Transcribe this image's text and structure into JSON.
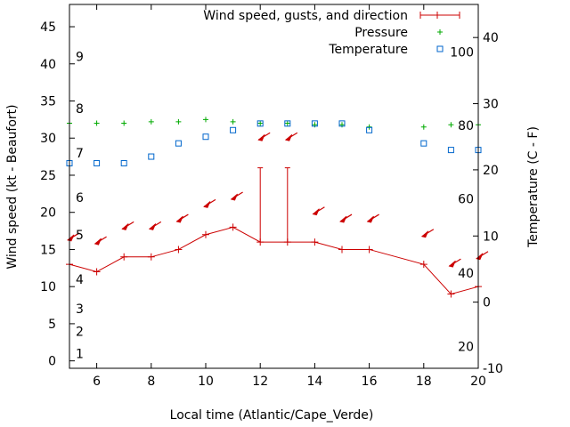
{
  "chart_data": {
    "type": "line",
    "x": [
      5,
      6,
      7,
      8,
      9,
      10,
      11,
      12,
      13,
      14,
      15,
      16,
      18,
      19,
      20
    ],
    "xlabel": "Local time (Atlantic/Cape_Verde)",
    "ylabel": "Wind speed (kt - Beaufort)",
    "y2label": "Temperature (C - F)",
    "xlim": [
      5,
      20
    ],
    "ylim": [
      -1,
      48
    ],
    "y2lim": [
      -10,
      45
    ],
    "xticks": [
      "6",
      "8",
      "10",
      "12",
      "14",
      "16",
      "18",
      "20"
    ],
    "yticks": [
      "0",
      "5",
      "10",
      "15",
      "20",
      "25",
      "30",
      "35",
      "40",
      "45"
    ],
    "y2ticks": [
      "-10",
      "0",
      "10",
      "20",
      "30",
      "40"
    ],
    "beaufort_labels": [
      {
        "label": "1",
        "kt": 1
      },
      {
        "label": "2",
        "kt": 4
      },
      {
        "label": "3",
        "kt": 7
      },
      {
        "label": "4",
        "kt": 11
      },
      {
        "label": "5",
        "kt": 17
      },
      {
        "label": "6",
        "kt": 22
      },
      {
        "label": "7",
        "kt": 28
      },
      {
        "label": "8",
        "kt": 34
      },
      {
        "label": "9",
        "kt": 41
      }
    ],
    "fahrenheit_labels": [
      {
        "label": "20",
        "c": -6.7
      },
      {
        "label": "40",
        "c": 4.4
      },
      {
        "label": "60",
        "c": 15.6
      },
      {
        "label": "80",
        "c": 26.7
      },
      {
        "label": "100",
        "c": 37.8
      }
    ],
    "series": [
      {
        "name": "Wind speed, gusts, and direction",
        "color": "#cc0000",
        "values": [
          13,
          12,
          14,
          14,
          15,
          17,
          18,
          16,
          16,
          16,
          15,
          15,
          13,
          9,
          10
        ],
        "gusts": [
          null,
          null,
          null,
          null,
          null,
          null,
          null,
          26,
          26,
          null,
          null,
          null,
          null,
          null,
          null
        ]
      },
      {
        "name": "Pressure",
        "color": "#00aa00",
        "values": [
          32,
          32,
          32,
          32.2,
          32.2,
          32.5,
          32.2,
          32,
          32,
          31.8,
          31.8,
          31.5,
          31.5,
          31.8,
          31.8
        ]
      },
      {
        "name": "Temperature",
        "color": "#0066cc",
        "values": [
          21,
          21,
          21,
          22,
          24,
          25,
          26,
          27,
          27,
          27,
          27,
          26,
          24,
          23,
          23
        ]
      }
    ],
    "wind_arrows": [
      {
        "x": 5,
        "kt": 16.5
      },
      {
        "x": 6,
        "kt": 16
      },
      {
        "x": 7,
        "kt": 18
      },
      {
        "x": 8,
        "kt": 18
      },
      {
        "x": 9,
        "kt": 19
      },
      {
        "x": 10,
        "kt": 21
      },
      {
        "x": 11,
        "kt": 22
      },
      {
        "x": 12,
        "kt": 30
      },
      {
        "x": 13,
        "kt": 30
      },
      {
        "x": 14,
        "kt": 20
      },
      {
        "x": 15,
        "kt": 19
      },
      {
        "x": 16,
        "kt": 19
      },
      {
        "x": 18,
        "kt": 17
      },
      {
        "x": 19,
        "kt": 13
      },
      {
        "x": 20,
        "kt": 14
      }
    ]
  }
}
